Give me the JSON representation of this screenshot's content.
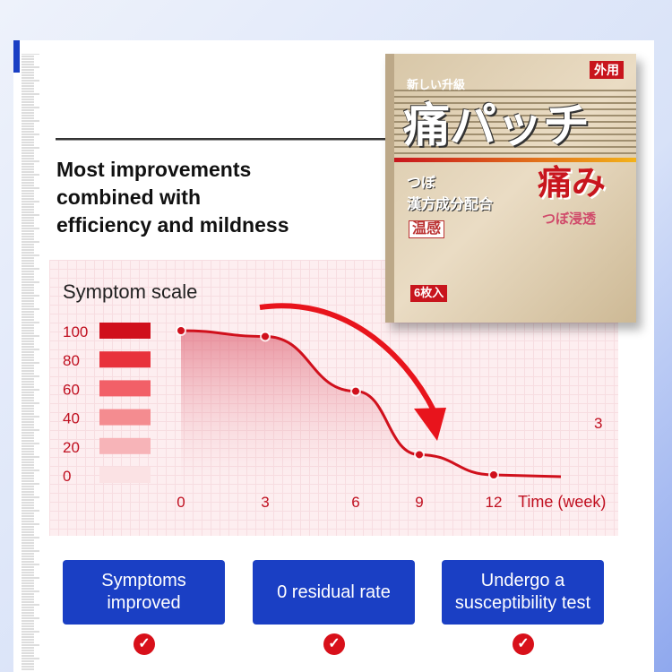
{
  "heading": [
    "Most improvements",
    "combined with",
    "efficiency and mildness"
  ],
  "product": {
    "tag": "外用",
    "upgrade": "新しい升級",
    "name": "痛パッチ",
    "sub1": "つぼ",
    "sub2": "漢方成分配合",
    "warm": "温感",
    "pain": "痛み",
    "penetrate": "つぼ浸透",
    "count": "6枚入"
  },
  "chart_data": {
    "type": "line",
    "ylabel": "Symptom scale",
    "xlabel": "Time (week)",
    "y_ticks": [
      "100",
      "80",
      "60",
      "40",
      "20",
      "0"
    ],
    "x_ticks": [
      "0",
      "3",
      "6",
      "9",
      "12"
    ],
    "x": [
      0,
      3,
      6,
      9,
      12
    ],
    "values": [
      100,
      96,
      58,
      14,
      0
    ],
    "ylim": [
      0,
      100
    ],
    "stray_label": "3",
    "colors": {
      "line": "#d0101c",
      "legend": [
        "#d0101c",
        "#e8323c",
        "#f26068",
        "#f48c90",
        "#f7b4b8",
        "#fbe2e4"
      ]
    }
  },
  "features": [
    {
      "label": "Symptoms improved"
    },
    {
      "label": "0 residual rate"
    },
    {
      "label": "Undergo a susceptibility test"
    }
  ],
  "colors": {
    "button": "#1a3fc4",
    "check": "#d8101a"
  }
}
